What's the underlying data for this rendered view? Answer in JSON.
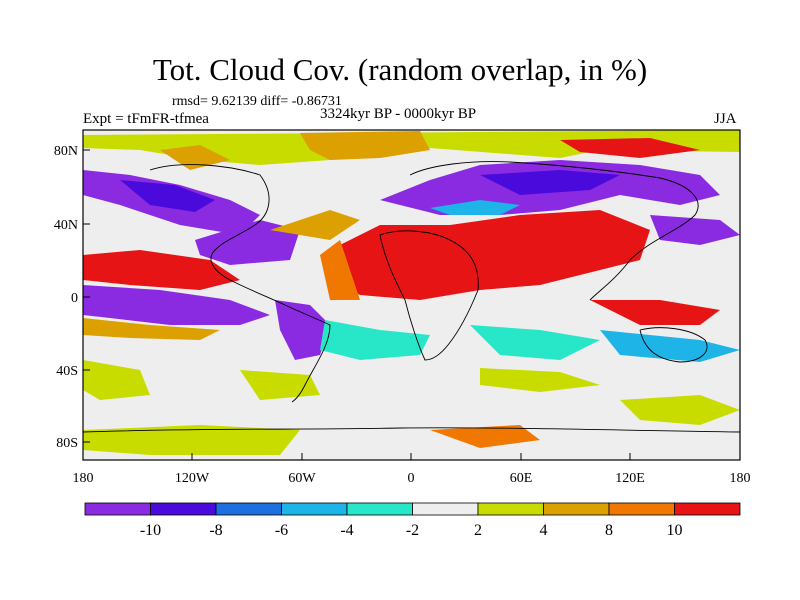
{
  "header": {
    "title": "Tot. Cloud Cov. (random overlap, in %)",
    "stats": "rmsd= 9.62139 diff= -0.86731",
    "period": "3324kyr BP - 0000kyr BP",
    "experiment": "Expt = tFmFR-tfmea",
    "season": "JJA"
  },
  "axes": {
    "lat_ticks": [
      "80N",
      "40N",
      "0",
      "40S",
      "80S"
    ],
    "lon_ticks": [
      "180",
      "120W",
      "60W",
      "0",
      "60E",
      "120E",
      "180"
    ]
  },
  "colorbar": {
    "labels": [
      "-10",
      "-8",
      "-6",
      "-4",
      "-2",
      "2",
      "4",
      "8",
      "10"
    ],
    "colors": [
      "#8a2be2",
      "#4b0adc",
      "#1e6fe0",
      "#1eb4e8",
      "#28e6c8",
      "#eeeeee",
      "#c8dc00",
      "#dca000",
      "#f07800",
      "#e61414"
    ]
  }
}
